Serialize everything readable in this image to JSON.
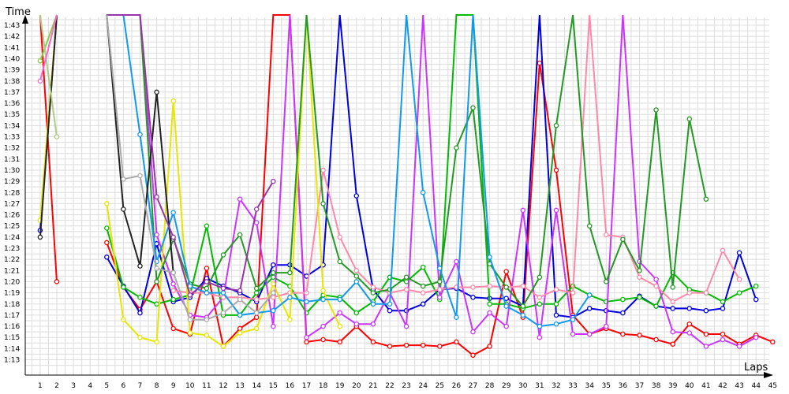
{
  "chart_data": {
    "type": "line",
    "xlabel": "Laps",
    "ylabel": "Time",
    "x": [
      1,
      2,
      3,
      4,
      5,
      6,
      7,
      8,
      9,
      10,
      11,
      12,
      13,
      14,
      15,
      16,
      17,
      18,
      19,
      20,
      21,
      22,
      23,
      24,
      25,
      26,
      27,
      28,
      29,
      30,
      31,
      32,
      33,
      34,
      35,
      36,
      37,
      38,
      39,
      40,
      41,
      42,
      43,
      44,
      45
    ],
    "xlim": [
      1,
      45
    ],
    "ylim_seconds": [
      793,
      844
    ],
    "y_ticks": [
      "1:13",
      "1:14",
      "1:15",
      "1:16",
      "1:17",
      "1:18",
      "1:19",
      "1:20",
      "1:21",
      "1:22",
      "1:23",
      "1:24",
      "1:25",
      "1:26",
      "1:27",
      "1:28",
      "1:29",
      "1:30",
      "1:31",
      "1:32",
      "1:33",
      "1:34",
      "1:35",
      "1:36",
      "1:37",
      "1:38",
      "1:39",
      "1:40",
      "1:41",
      "1:42",
      "1:43"
    ],
    "grid": true,
    "legend": "none",
    "series": [
      {
        "color": "#ff0000",
        "values": [
          null,
          null,
          null,
          null,
          83.5,
          79.5,
          77.5,
          80.0,
          75.8,
          75.3,
          81.2,
          74.2,
          75.8,
          76.8,
          110,
          110,
          74.6,
          74.8,
          74.6,
          76.0,
          74.6,
          74.2,
          74.3,
          74.3,
          74.2,
          74.6,
          73.4,
          74.2,
          80.9,
          76.8,
          99.6,
          90.0,
          77.0,
          75.3,
          75.8,
          75.3,
          75.2,
          74.8,
          74.4,
          76.2,
          75.3,
          75.3,
          74.4,
          75.2,
          74.6
        ]
      },
      {
        "color": "#0000dd",
        "values": [
          null,
          null,
          null,
          null,
          82.2,
          79.6,
          77.2,
          83.4,
          78.2,
          78.6,
          80.3,
          79.6,
          79.0,
          78.2,
          81.5,
          81.5,
          80.5,
          81.5,
          110,
          87.7,
          79.3,
          77.4,
          77.4,
          78.0,
          79.3,
          79.4,
          78.6,
          78.5,
          78.5,
          77.8,
          110,
          77.0,
          76.8,
          77.6,
          77.4,
          77.2,
          78.7,
          77.8,
          77.6,
          77.6,
          77.4,
          77.6,
          82.6,
          78.4,
          null
        ]
      },
      {
        "color": "#00bb00",
        "values": [
          null,
          null,
          null,
          null,
          84.8,
          79.5,
          78.6,
          78.0,
          78.4,
          78.8,
          85.0,
          77.0,
          77.0,
          79.0,
          80.4,
          79.6,
          77.2,
          78.8,
          78.6,
          77.2,
          78.2,
          80.4,
          80.0,
          81.3,
          78.4,
          110,
          110,
          78.0,
          78.0,
          77.6,
          78.0,
          78.0,
          79.6,
          78.8,
          78.2,
          78.4,
          78.6,
          77.8,
          80.8,
          79.3,
          79.0,
          78.2,
          79.0,
          79.6,
          null
        ]
      },
      {
        "color": "#cc33ff",
        "values": [
          null,
          null,
          null,
          null,
          110,
          110,
          110,
          84.2,
          79.8,
          77.0,
          76.8,
          78.6,
          87.4,
          85.3,
          76.0,
          110,
          75.0,
          76.0,
          77.2,
          76.2,
          76.2,
          79.0,
          76.0,
          110,
          78.6,
          81.8,
          75.5,
          77.2,
          76.0,
          86.4,
          75.0,
          86.4,
          75.3,
          75.3,
          76.0,
          110,
          81.8,
          80.2,
          75.5,
          75.4,
          74.2,
          74.8,
          74.2,
          75.0,
          null
        ]
      },
      {
        "color": "#ff88aa",
        "values": [
          null,
          null,
          null,
          null,
          null,
          null,
          null,
          null,
          79.2,
          79.0,
          79.0,
          78.6,
          78.6,
          78.4,
          78.6,
          79.0,
          79.0,
          90.0,
          84.0,
          81.0,
          79.5,
          79.0,
          79.3,
          79.0,
          79.3,
          79.5,
          79.5,
          79.6,
          79.5,
          79.6,
          78.6,
          79.3,
          79.0,
          110,
          84.2,
          84.0,
          80.4,
          79.6,
          78.2,
          79.0,
          79.0,
          82.8,
          80.2,
          null,
          null
        ]
      },
      {
        "color": "#e6e600",
        "values": [
          null,
          null,
          null,
          null,
          87.0,
          76.6,
          75.0,
          74.6,
          96.2,
          75.4,
          75.2,
          74.2,
          75.4,
          75.8,
          79.8,
          76.6,
          110,
          79.2,
          76.0,
          null,
          null,
          null,
          null,
          null,
          null,
          null,
          null,
          null,
          null,
          null,
          null,
          null,
          null,
          null,
          null,
          null,
          null,
          null,
          null,
          null,
          null,
          null,
          null,
          null,
          null
        ]
      },
      {
        "color": "#229922",
        "values": [
          null,
          null,
          null,
          null,
          110,
          110,
          110,
          80.0,
          83.8,
          79.8,
          79.4,
          82.4,
          84.2,
          79.4,
          80.8,
          80.8,
          110,
          87.0,
          81.8,
          80.5,
          79.0,
          79.3,
          80.4,
          79.6,
          80.0,
          92.0,
          95.6,
          81.6,
          79.5,
          77.8,
          80.4,
          94.0,
          110,
          85.0,
          80.0,
          83.8,
          81.0,
          95.4,
          79.5,
          94.6,
          87.4,
          null,
          null,
          null,
          null
        ]
      },
      {
        "color": "#1199ee",
        "values": [
          null,
          null,
          null,
          null,
          110,
          110,
          93.2,
          81.8,
          86.2,
          79.6,
          79.0,
          79.0,
          77.0,
          77.2,
          77.4,
          78.6,
          78.2,
          78.4,
          78.4,
          80.0,
          78.0,
          78.0,
          110,
          88.0,
          81.2,
          76.8,
          110,
          82.2,
          77.8,
          77.0,
          76.0,
          76.2,
          76.6,
          78.8,
          null,
          null,
          null,
          null,
          null,
          null,
          null,
          null,
          null,
          null,
          null
        ]
      },
      {
        "color": "#222222",
        "values": [
          null,
          null,
          null,
          null,
          110,
          86.5,
          81.4,
          97.0,
          80.8,
          null,
          null,
          null,
          null,
          null,
          null,
          null,
          null,
          null,
          null,
          null,
          null,
          null,
          null,
          null,
          null,
          null,
          null,
          null,
          null,
          null,
          null,
          null,
          null,
          null,
          null,
          null,
          null,
          null,
          null,
          null,
          null,
          null,
          null,
          null,
          null
        ]
      },
      {
        "color": "#9933aa",
        "values": [
          null,
          null,
          null,
          null,
          110,
          110,
          110,
          87.6,
          84.0,
          78.8,
          80.0,
          79.4,
          79.2,
          86.5,
          89.0,
          null,
          null,
          null,
          null,
          null,
          null,
          null,
          null,
          null,
          null,
          null,
          null,
          null,
          null,
          null,
          null,
          null,
          null,
          null,
          null,
          null,
          null,
          null,
          null,
          null,
          null,
          null,
          null,
          null,
          null
        ]
      },
      {
        "color": "#aaaaaa",
        "values": [
          null,
          null,
          null,
          null,
          110,
          89.2,
          89.5,
          81.2,
          80.8,
          76.6,
          76.6,
          77.2,
          78.4,
          77.2,
          79.0,
          null,
          null,
          null,
          null,
          null,
          null,
          null,
          null,
          null,
          null,
          null,
          null,
          null,
          null,
          null,
          null,
          null,
          null,
          null,
          null,
          null,
          null,
          null,
          null,
          null,
          null,
          null,
          null,
          null,
          null
        ]
      },
      {
        "color": "#ff0000",
        "values": [
          110,
          80.0,
          null,
          null,
          null,
          null,
          null,
          null,
          null,
          null,
          null,
          null,
          null,
          null,
          null,
          null,
          null,
          null,
          null,
          null,
          null,
          null,
          null,
          null,
          null,
          null,
          null,
          null,
          null,
          null,
          null,
          null,
          null,
          null,
          null,
          null,
          null,
          null,
          null,
          null,
          null,
          null,
          null,
          null,
          null
        ]
      },
      {
        "color": "#0000dd",
        "values": [
          84.6,
          110,
          null,
          null,
          null,
          null,
          null,
          null,
          null,
          null,
          null,
          null,
          null,
          null,
          null,
          null,
          null,
          null,
          null,
          null,
          null,
          null,
          null,
          null,
          null,
          null,
          null,
          null,
          null,
          null,
          null,
          null,
          null,
          null,
          null,
          null,
          null,
          null,
          null,
          null,
          null,
          null,
          null,
          null,
          null
        ]
      },
      {
        "color": "#e6e600",
        "values": [
          85.5,
          110,
          null,
          null,
          null,
          null,
          null,
          null,
          null,
          null,
          null,
          null,
          null,
          null,
          null,
          null,
          null,
          null,
          null,
          null,
          null,
          null,
          null,
          null,
          null,
          null,
          null,
          null,
          null,
          null,
          null,
          null,
          null,
          null,
          null,
          null,
          null,
          null,
          null,
          null,
          null,
          null,
          null,
          null,
          null
        ]
      },
      {
        "color": "#222222",
        "values": [
          84.0,
          110,
          null,
          null,
          null,
          null,
          null,
          null,
          null,
          null,
          null,
          null,
          null,
          null,
          null,
          null,
          null,
          null,
          null,
          null,
          null,
          null,
          null,
          null,
          null,
          null,
          null,
          null,
          null,
          null,
          null,
          null,
          null,
          null,
          null,
          null,
          null,
          null,
          null,
          null,
          null,
          null,
          null,
          null,
          null
        ]
      },
      {
        "color": "#88cc44",
        "values": [
          99.8,
          110,
          null,
          null,
          null,
          null,
          null,
          null,
          null,
          null,
          null,
          null,
          null,
          null,
          null,
          null,
          null,
          null,
          null,
          null,
          null,
          null,
          null,
          null,
          null,
          null,
          null,
          null,
          null,
          null,
          null,
          null,
          null,
          null,
          null,
          null,
          null,
          null,
          null,
          null,
          null,
          null,
          null,
          null,
          null
        ]
      },
      {
        "color": "#aacc88",
        "values": [
          110,
          93.0,
          null,
          null,
          null,
          null,
          null,
          null,
          null,
          null,
          null,
          null,
          null,
          null,
          null,
          null,
          null,
          null,
          null,
          null,
          null,
          null,
          null,
          null,
          null,
          null,
          null,
          null,
          null,
          null,
          null,
          null,
          null,
          null,
          null,
          null,
          null,
          null,
          null,
          null,
          null,
          null,
          null,
          null,
          null
        ]
      },
      {
        "color": "#ff66cc",
        "values": [
          98.0,
          110,
          null,
          null,
          null,
          null,
          null,
          null,
          null,
          null,
          null,
          null,
          null,
          null,
          null,
          null,
          null,
          null,
          null,
          null,
          null,
          null,
          null,
          null,
          null,
          null,
          null,
          null,
          null,
          null,
          null,
          null,
          null,
          null,
          null,
          null,
          null,
          null,
          null,
          null,
          null,
          null,
          null,
          null,
          null
        ]
      }
    ]
  }
}
